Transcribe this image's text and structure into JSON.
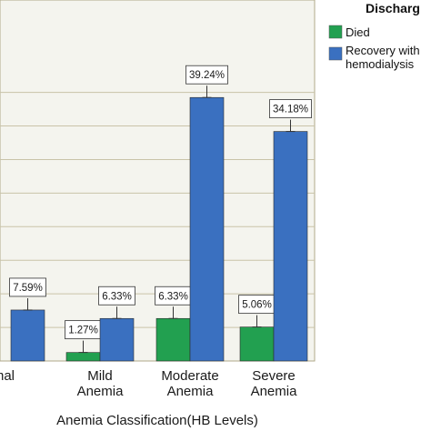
{
  "chart_data": {
    "type": "bar",
    "title": "",
    "xlabel": "Anemia Classification(HB Levels)",
    "ylabel": "",
    "categories": [
      "Normal",
      "Mild Anemia",
      "Moderate Anemia",
      "Severe Anemia"
    ],
    "category_lines": [
      [
        "rmal"
      ],
      [
        "Mild",
        "Anemia"
      ],
      [
        "Moderate",
        "Anemia"
      ],
      [
        "Severe",
        "Anemia"
      ]
    ],
    "series": [
      {
        "name": "Died",
        "color": "#22a050",
        "values": [
          null,
          1.27,
          6.33,
          5.06
        ],
        "labels": [
          "",
          "1.27%",
          "6.33%",
          "5.06%"
        ]
      },
      {
        "name": "Recovery with hemodialysis",
        "legend_lines": [
          "Recovery with",
          "hemodialysis"
        ],
        "color": "#3a70c0",
        "values": [
          7.59,
          6.33,
          39.24,
          34.18
        ],
        "labels": [
          "7.59%",
          "6.33%",
          "39.24%",
          "34.18%"
        ]
      }
    ],
    "ylim": [
      0,
      45
    ],
    "grid": true,
    "legend": {
      "title": "Discharg",
      "placement": "top-right"
    }
  }
}
